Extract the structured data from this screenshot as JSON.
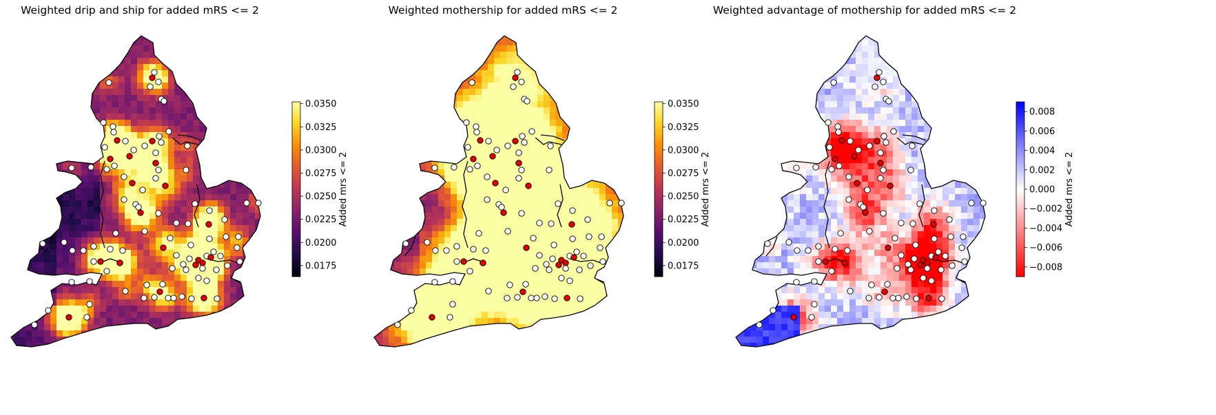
{
  "panels": [
    {
      "title": "Weighted drip and ship for added mRS <= 2",
      "colorbar": {
        "label": "Added mrs <= 2",
        "ticks": [
          "0.0350",
          "0.0325",
          "0.0300",
          "0.0275",
          "0.0250",
          "0.0225",
          "0.0200",
          "0.0175"
        ],
        "colormap": "inferno",
        "range": [
          0.0163,
          0.0352
        ]
      }
    },
    {
      "title": "Weighted mothership for added mRS <= 2",
      "colorbar": {
        "label": "Added mrs <= 2",
        "ticks": [
          "0.0350",
          "0.0325",
          "0.0300",
          "0.0275",
          "0.0250",
          "0.0225",
          "0.0200",
          "0.0175"
        ],
        "colormap": "inferno",
        "range": [
          0.0163,
          0.0352
        ]
      }
    },
    {
      "title": "Weighted advantage of mothership for added mRS <= 2",
      "colorbar": {
        "label": "Added mrs <= 2",
        "ticks": [
          "0.008",
          "0.006",
          "0.004",
          "0.002",
          "0.000",
          "−0.002",
          "−0.004",
          "−0.006",
          "−0.008"
        ],
        "colormap": "bwr_r",
        "range": [
          -0.009,
          0.009
        ]
      }
    }
  ],
  "colors": {
    "comprehensive_stroke_centre": "#e00000",
    "acute_stroke_unit": "#ffffff",
    "marker_edge": "#000000",
    "inferno": [
      "#000004",
      "#1f0c48",
      "#550f6d",
      "#88226a",
      "#ba3655",
      "#e35933",
      "#f98e09",
      "#fbd424",
      "#fcffa4"
    ],
    "bwr_r": [
      "#ff0000",
      "#ffffff",
      "#0000ff"
    ]
  }
}
